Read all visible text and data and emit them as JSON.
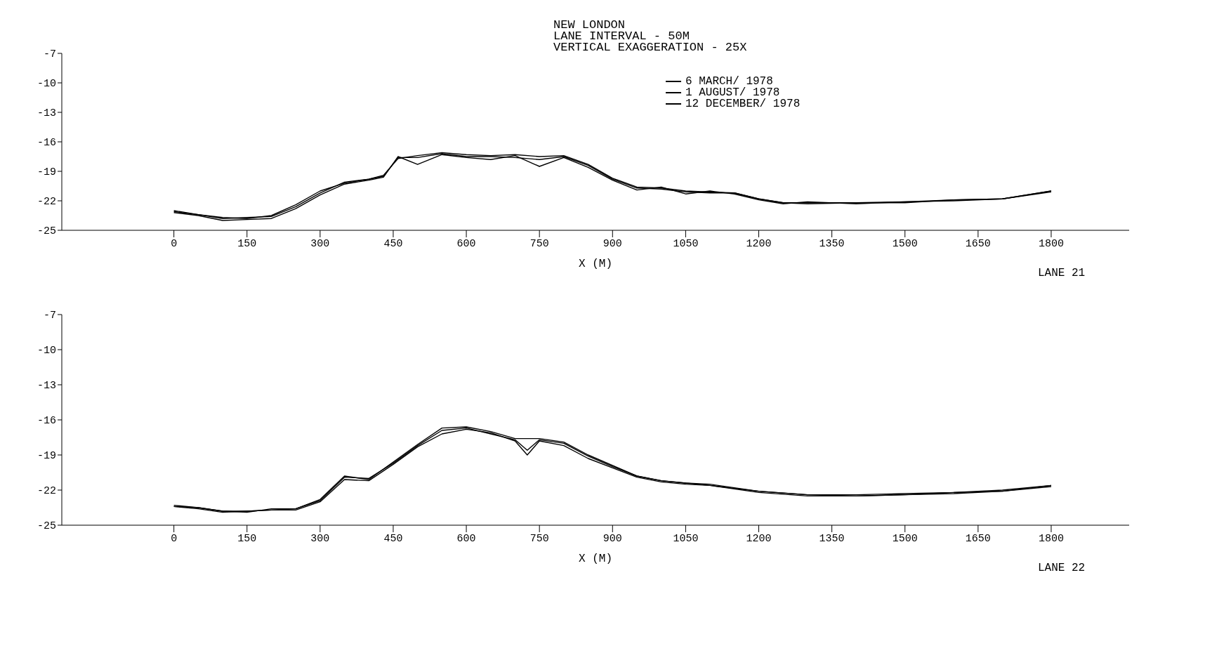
{
  "chart_data": [
    {
      "type": "line",
      "title": "NEW LONDON",
      "subtitle": "LANE INTERVAL - 50M\nVERTICAL EXAGGERATION - 25X",
      "xlabel": "X (M)",
      "annotations": [
        "LANE 21"
      ],
      "legend": "top",
      "marker": "none",
      "line_style": "solid",
      "x": [
        0,
        50,
        100,
        150,
        200,
        250,
        300,
        350,
        400,
        430,
        460,
        500,
        550,
        600,
        650,
        700,
        750,
        800,
        850,
        900,
        950,
        1000,
        1050,
        1100,
        1150,
        1200,
        1250,
        1300,
        1400,
        1500,
        1600,
        1700,
        1800
      ],
      "xlim": [
        -230,
        1960
      ],
      "xticks": [
        0,
        150,
        300,
        450,
        600,
        750,
        900,
        1050,
        1200,
        1350,
        1500,
        1650,
        1800
      ],
      "ylim": [
        -25,
        -7
      ],
      "yticks": [
        -25,
        -22,
        -19,
        -16,
        -13,
        -10,
        -7
      ],
      "series": [
        {
          "name": "6 MARCH/ 1978",
          "color": "#000000",
          "values": [
            -23.1,
            -23.4,
            -23.7,
            -23.8,
            -23.5,
            -22.4,
            -21.0,
            -20.2,
            -19.8,
            -19.4,
            -17.7,
            -17.4,
            -17.1,
            -17.3,
            -17.4,
            -17.3,
            -17.5,
            -17.4,
            -18.3,
            -19.7,
            -20.6,
            -20.7,
            -21.0,
            -21.1,
            -21.2,
            -21.8,
            -22.2,
            -22.2,
            -22.2,
            -22.1,
            -21.9,
            -21.8,
            -21.0
          ]
        },
        {
          "name": "1 AUGUST/ 1978",
          "color": "#000000",
          "values": [
            -23.2,
            -23.5,
            -24.0,
            -23.9,
            -23.8,
            -22.8,
            -21.4,
            -20.3,
            -19.9,
            -19.6,
            -17.5,
            -18.3,
            -17.3,
            -17.6,
            -17.8,
            -17.4,
            -18.5,
            -17.6,
            -18.6,
            -19.9,
            -20.9,
            -20.6,
            -21.3,
            -21.0,
            -21.3,
            -21.9,
            -22.3,
            -22.1,
            -22.3,
            -22.1,
            -22.0,
            -21.8,
            -21.0
          ]
        },
        {
          "name": "12 DECEMBER/ 1978",
          "color": "#000000",
          "values": [
            -23.0,
            -23.4,
            -23.8,
            -23.7,
            -23.6,
            -22.6,
            -21.2,
            -20.1,
            -19.8,
            -19.5,
            -17.6,
            -17.6,
            -17.2,
            -17.5,
            -17.5,
            -17.6,
            -17.8,
            -17.5,
            -18.4,
            -19.8,
            -20.7,
            -20.8,
            -21.1,
            -21.2,
            -21.2,
            -21.8,
            -22.2,
            -22.3,
            -22.2,
            -22.2,
            -21.9,
            -21.8,
            -21.1
          ]
        }
      ]
    },
    {
      "type": "line",
      "xlabel": "X (M)",
      "annotations": [
        "LANE 22"
      ],
      "marker": "none",
      "line_style": "solid",
      "x": [
        0,
        50,
        100,
        150,
        200,
        250,
        300,
        350,
        400,
        450,
        500,
        550,
        600,
        650,
        700,
        725,
        750,
        800,
        850,
        900,
        950,
        1000,
        1050,
        1100,
        1200,
        1300,
        1400,
        1500,
        1600,
        1700,
        1800
      ],
      "xlim": [
        -230,
        1960
      ],
      "xticks": [
        0,
        150,
        300,
        450,
        600,
        750,
        900,
        1050,
        1200,
        1350,
        1500,
        1650,
        1800
      ],
      "ylim": [
        -25,
        -7
      ],
      "yticks": [
        -25,
        -22,
        -19,
        -16,
        -13,
        -10,
        -7
      ],
      "series": [
        {
          "color": "#000000",
          "values": [
            -23.4,
            -23.5,
            -23.8,
            -23.8,
            -23.7,
            -23.6,
            -22.8,
            -20.8,
            -21.1,
            -19.6,
            -18.1,
            -16.7,
            -16.6,
            -17.0,
            -17.6,
            -17.6,
            -17.6,
            -17.9,
            -19.0,
            -19.9,
            -20.8,
            -21.2,
            -21.4,
            -21.5,
            -22.1,
            -22.4,
            -22.5,
            -22.4,
            -22.2,
            -22.1,
            -21.6
          ]
        },
        {
          "color": "#000000",
          "values": [
            -23.4,
            -23.6,
            -23.9,
            -23.8,
            -23.7,
            -23.7,
            -23.0,
            -21.1,
            -21.2,
            -19.8,
            -18.3,
            -17.2,
            -16.8,
            -17.1,
            -17.8,
            -19.0,
            -17.8,
            -18.2,
            -19.3,
            -20.1,
            -20.9,
            -21.3,
            -21.5,
            -21.6,
            -22.2,
            -22.5,
            -22.5,
            -22.4,
            -22.3,
            -22.1,
            -21.7
          ]
        },
        {
          "color": "#000000",
          "values": [
            -23.3,
            -23.5,
            -23.8,
            -23.9,
            -23.6,
            -23.6,
            -22.9,
            -20.9,
            -21.0,
            -19.7,
            -18.2,
            -16.9,
            -16.7,
            -17.2,
            -17.7,
            -18.6,
            -17.7,
            -18.0,
            -19.1,
            -20.0,
            -20.8,
            -21.2,
            -21.4,
            -21.6,
            -22.1,
            -22.4,
            -22.4,
            -22.3,
            -22.2,
            -22.0,
            -21.6
          ]
        }
      ]
    }
  ]
}
